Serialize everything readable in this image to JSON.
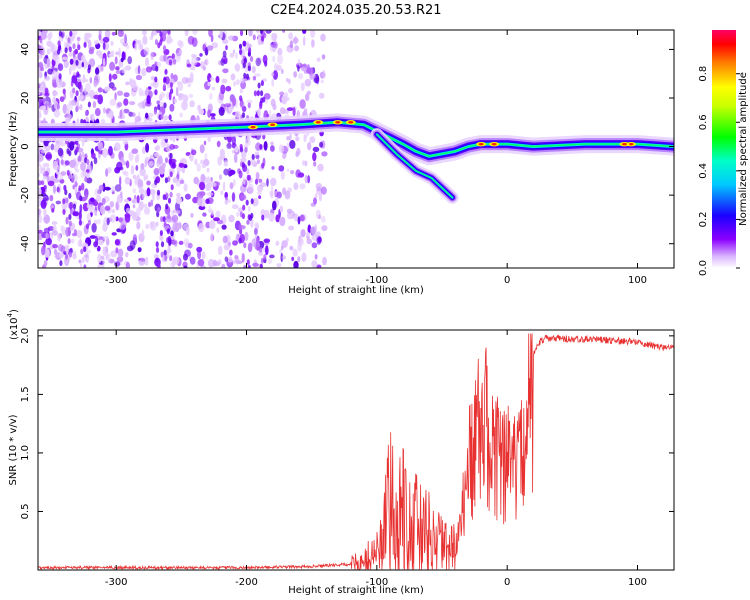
{
  "title": "C2E4.2024.035.20.53.R21",
  "colors": {
    "spectrogram_background": "#ffffff",
    "line_color": "#e83232",
    "colormap": [
      "#ffffff",
      "#d9b3ff",
      "#7a00ff",
      "#1a00ff",
      "#00ffff",
      "#00ff00",
      "#ffff00",
      "#ff8000",
      "#ff0000",
      "#ff0066"
    ]
  },
  "chart_data": [
    {
      "type": "heatmap",
      "xlabel": "Height of straight line (km)",
      "ylabel": "Frequency (Hz)",
      "xlim": [
        -360,
        128
      ],
      "ylim": [
        -50,
        48
      ],
      "x_ticks": [
        -300,
        -200,
        -100,
        0,
        100
      ],
      "y_ticks": [
        -40,
        -20,
        0,
        20,
        40
      ],
      "colorbar": {
        "label": "Normalized spectral amplitude",
        "range": [
          0.0,
          0.98
        ],
        "ticks": [
          "0.0",
          "0.2",
          "0.4",
          "0.6",
          "0.8"
        ]
      },
      "main_trace": [
        {
          "x": -360,
          "y": 6
        },
        {
          "x": -300,
          "y": 6
        },
        {
          "x": -250,
          "y": 7
        },
        {
          "x": -200,
          "y": 8
        },
        {
          "x": -160,
          "y": 9
        },
        {
          "x": -130,
          "y": 10
        },
        {
          "x": -110,
          "y": 9
        },
        {
          "x": -95,
          "y": 5
        },
        {
          "x": -80,
          "y": 1
        },
        {
          "x": -70,
          "y": -2
        },
        {
          "x": -60,
          "y": -4
        },
        {
          "x": -50,
          "y": -3
        },
        {
          "x": -40,
          "y": -2
        },
        {
          "x": -30,
          "y": 0
        },
        {
          "x": -20,
          "y": 1
        },
        {
          "x": -10,
          "y": 1
        },
        {
          "x": 0,
          "y": 1
        },
        {
          "x": 20,
          "y": 0
        },
        {
          "x": 60,
          "y": 1
        },
        {
          "x": 100,
          "y": 1
        },
        {
          "x": 128,
          "y": 0
        }
      ],
      "branch_trace": [
        {
          "x": -100,
          "y": 5
        },
        {
          "x": -85,
          "y": -3
        },
        {
          "x": -70,
          "y": -10
        },
        {
          "x": -58,
          "y": -13
        },
        {
          "x": -48,
          "y": -18
        },
        {
          "x": -42,
          "y": -21
        }
      ]
    },
    {
      "type": "line",
      "xlabel": "Height of straight line (km)",
      "ylabel": "SNR (10 * v/v)",
      "y_multiplier": "(x10",
      "y_multiplier_exp": "4",
      "xlim": [
        -360,
        128
      ],
      "ylim": [
        0,
        2.05
      ],
      "x_ticks": [
        -300,
        -200,
        -100,
        0,
        100
      ],
      "y_ticks": [
        "0.5",
        "1.0",
        "1.5",
        "2.0"
      ],
      "series": [
        {
          "x": [
            -360,
            -300,
            -200,
            -150,
            -120,
            -110,
            -100,
            -95,
            -90,
            -85,
            -80,
            -75,
            -70,
            -65,
            -60,
            -55,
            -50,
            -45,
            -40,
            -35,
            -30,
            -25,
            -20,
            -15,
            -10,
            -5,
            0,
            5,
            10,
            15,
            20,
            25,
            30,
            40,
            50,
            60,
            80,
            100,
            110,
            120,
            128
          ],
          "y": [
            0.02,
            0.02,
            0.02,
            0.03,
            0.05,
            0.08,
            0.15,
            0.3,
            0.5,
            0.45,
            0.55,
            0.4,
            0.35,
            0.3,
            0.28,
            0.25,
            0.2,
            0.15,
            0.2,
            0.5,
            1.0,
            1.2,
            1.5,
            1.4,
            1.2,
            1.1,
            1.05,
            1.1,
            1.2,
            1.6,
            1.85,
            1.95,
            1.98,
            1.98,
            1.97,
            1.97,
            1.96,
            1.95,
            1.92,
            1.9,
            1.9
          ]
        }
      ]
    }
  ]
}
